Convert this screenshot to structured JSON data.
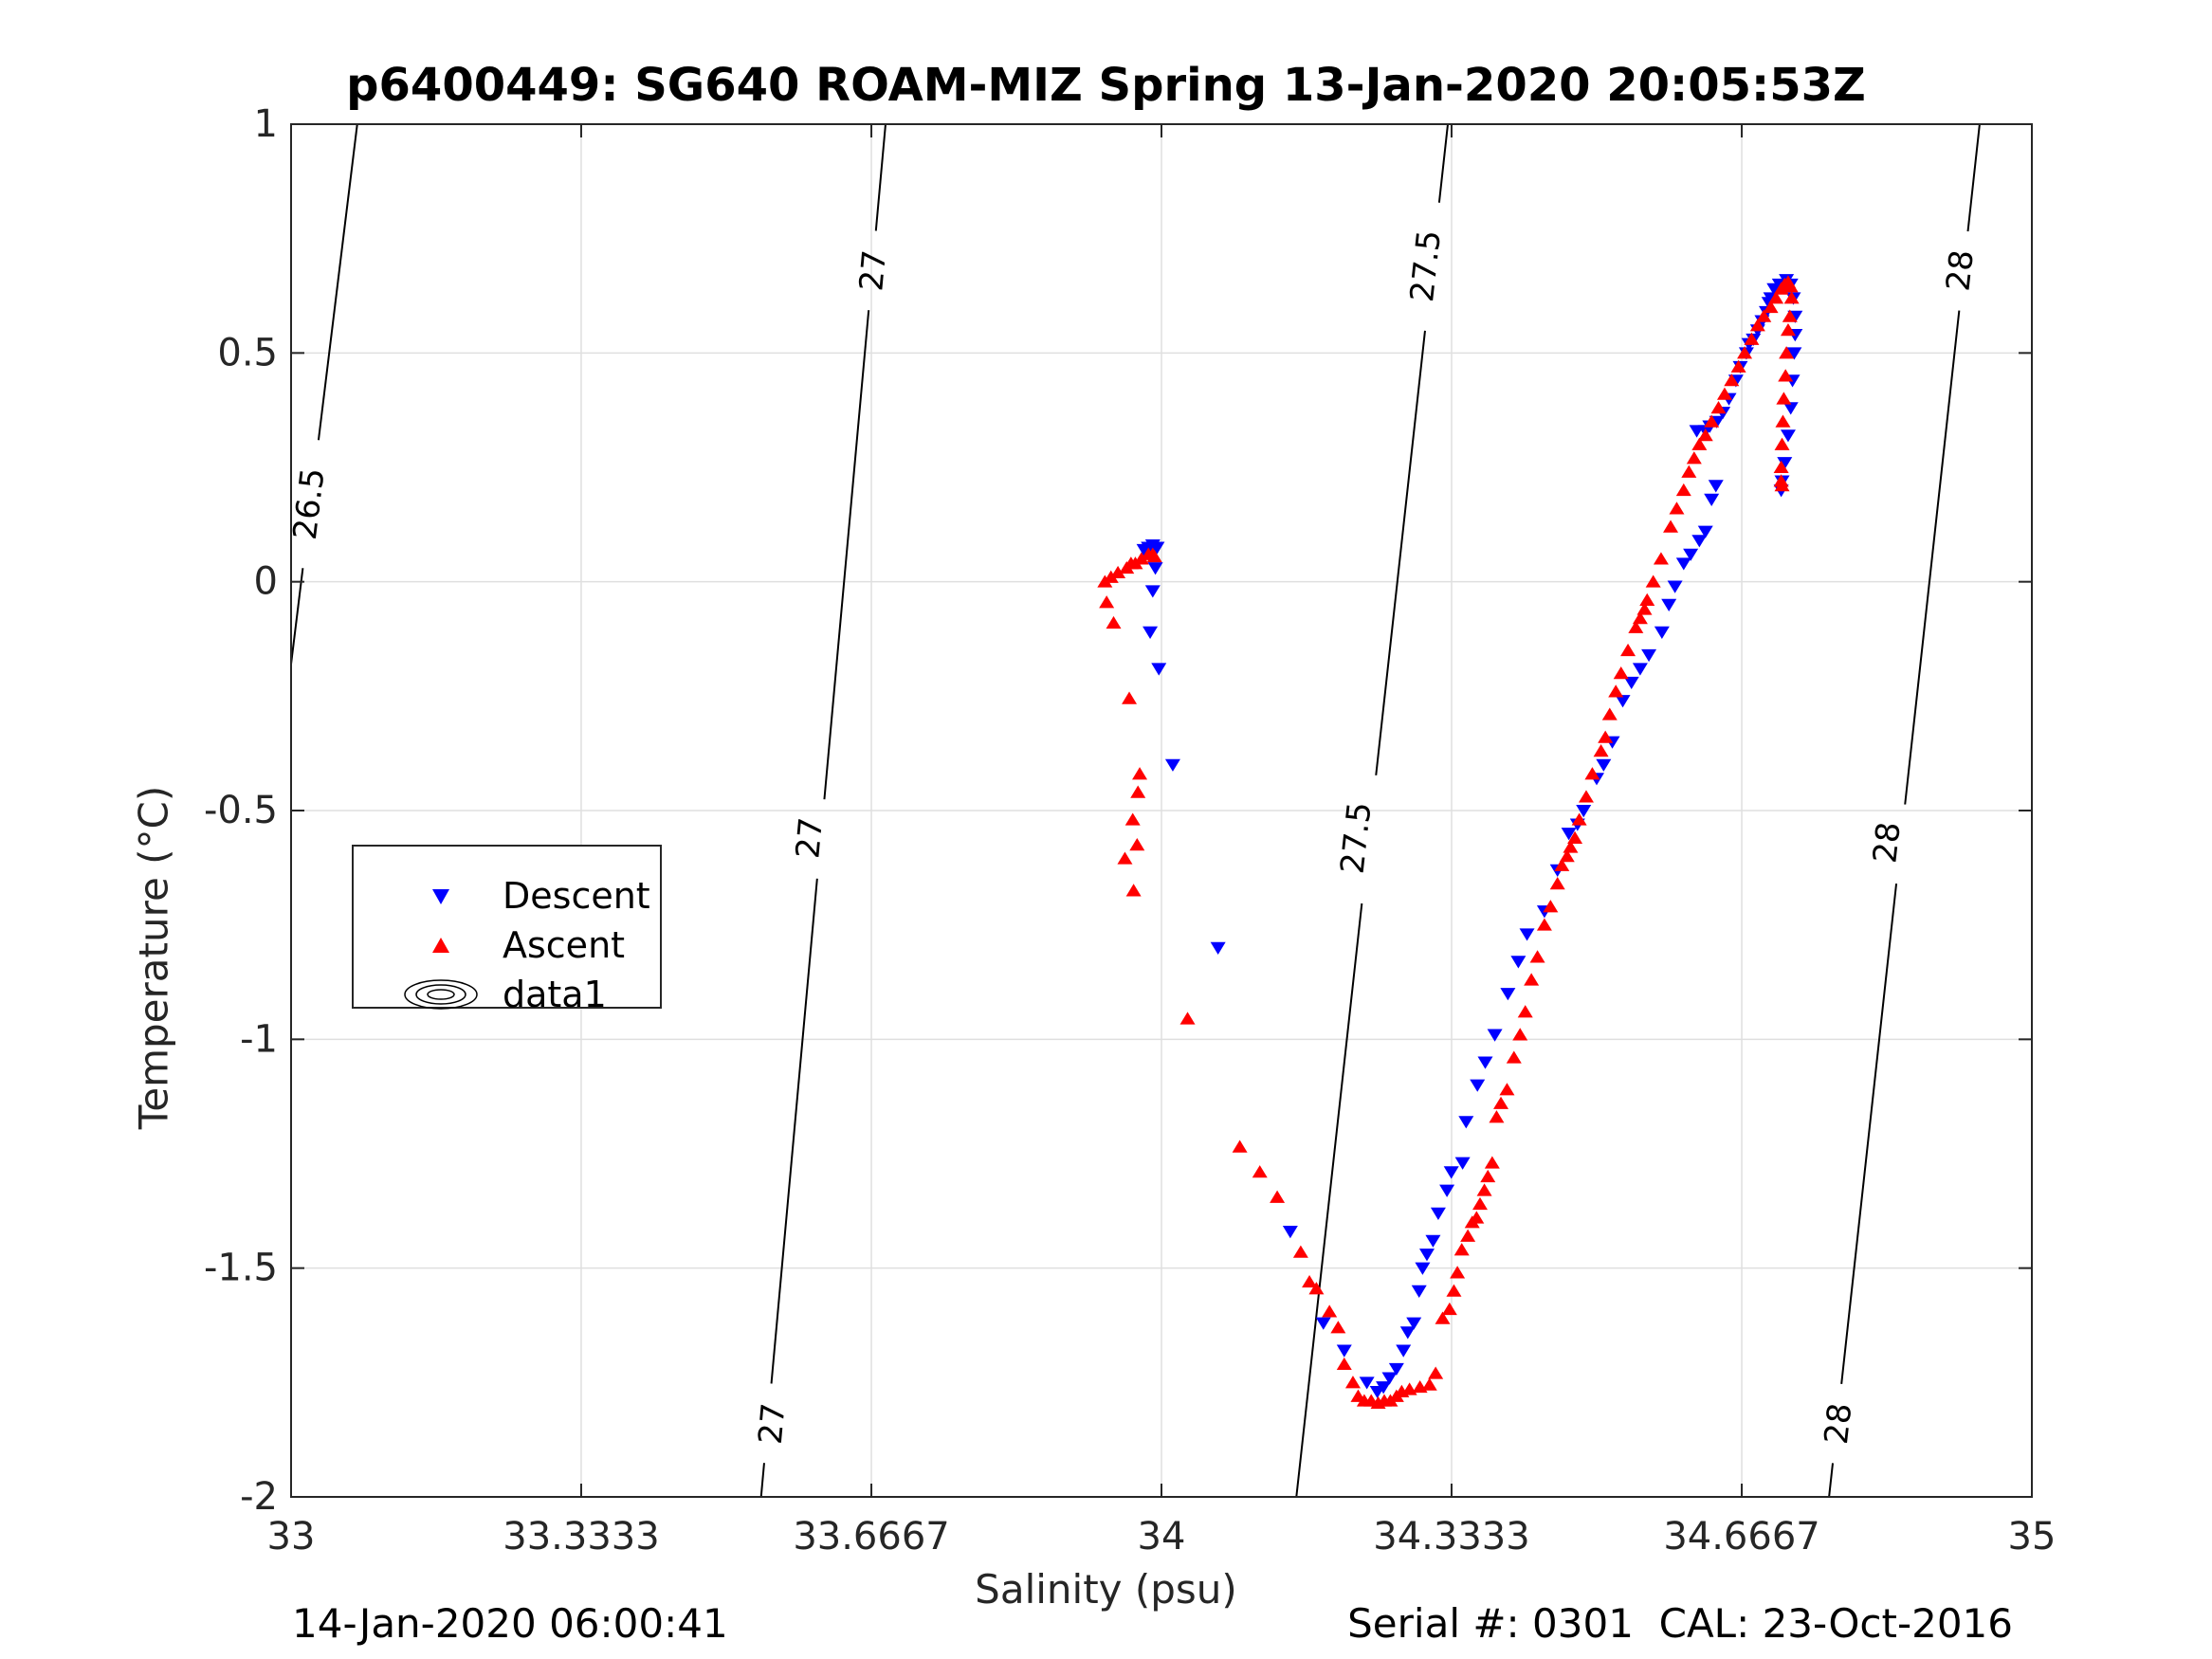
{
  "title": "p6400449: SG640 ROAM-MIZ Spring 13-Jan-2020 20:05:53Z",
  "footer": {
    "left": "14-Jan-2020 06:00:41",
    "right": "Serial #: 0301  CAL: 23-Oct-2016"
  },
  "legend": {
    "items": [
      {
        "label": "Descent",
        "symbol": "triangle-down",
        "color": "#0000ff"
      },
      {
        "label": "Ascent",
        "symbol": "triangle-up",
        "color": "#ff0000"
      },
      {
        "label": "data1",
        "symbol": "contour-ellipses",
        "color": "#000000"
      }
    ]
  },
  "chart_data": {
    "type": "scatter",
    "title": "p6400449: SG640 ROAM-MIZ Spring 13-Jan-2020 20:05:53Z",
    "xlabel": "Salinity (psu)",
    "ylabel": "Temperature (°C)",
    "xlim": [
      33,
      35
    ],
    "ylim": [
      -2,
      1
    ],
    "xticks": [
      "33",
      "33.3333",
      "33.6667",
      "34",
      "34.3333",
      "34.6667",
      "35"
    ],
    "yticks": [
      "-2",
      "-1.5",
      "-1",
      "-0.5",
      "0",
      "0.5",
      "1"
    ],
    "grid": true,
    "legend_position": "middle-left",
    "density_contours": {
      "color": "#000000",
      "lines": [
        {
          "level": "26.5",
          "points": [
            [
              33.0,
              -0.18
            ],
            [
              33.076,
              1.0
            ]
          ],
          "labels": [
            [
              33.021,
              0.17
            ]
          ]
        },
        {
          "level": "27",
          "points": [
            [
              33.54,
              -2.0
            ],
            [
              33.683,
              1.0
            ]
          ],
          "labels": [
            [
              33.553,
              -1.84
            ],
            [
              33.596,
              -0.56
            ],
            [
              33.669,
              0.68
            ]
          ]
        },
        {
          "level": "27.5",
          "points": [
            [
              34.155,
              -2.0
            ],
            [
              34.329,
              1.0
            ]
          ],
          "labels": [
            [
              34.224,
              -0.56
            ],
            [
              34.304,
              0.69
            ]
          ]
        },
        {
          "level": "28",
          "points": [
            [
              34.767,
              -2.0
            ],
            [
              34.94,
              1.0
            ]
          ],
          "labels": [
            [
              34.778,
              -1.84
            ],
            [
              34.834,
              -0.57
            ],
            [
              34.918,
              0.68
            ]
          ]
        }
      ]
    },
    "series": [
      {
        "name": "Descent",
        "marker": "triangle-down",
        "color": "#0000ff",
        "points": [
          [
            33.985,
            0.075
          ],
          [
            33.99,
            0.08
          ],
          [
            33.995,
            0.075
          ],
          [
            33.98,
            0.07
          ],
          [
            33.988,
            0.065
          ],
          [
            33.993,
            0.03
          ],
          [
            33.99,
            -0.02
          ],
          [
            33.987,
            -0.11
          ],
          [
            33.997,
            -0.19
          ],
          [
            34.013,
            -0.4
          ],
          [
            34.065,
            -0.8
          ],
          [
            34.148,
            -1.42
          ],
          [
            34.186,
            -1.62
          ],
          [
            34.21,
            -1.68
          ],
          [
            34.236,
            -1.75
          ],
          [
            34.248,
            -1.77
          ],
          [
            34.255,
            -1.76
          ],
          [
            34.262,
            -1.74
          ],
          [
            34.27,
            -1.72
          ],
          [
            34.278,
            -1.68
          ],
          [
            34.283,
            -1.64
          ],
          [
            34.29,
            -1.62
          ],
          [
            34.296,
            -1.55
          ],
          [
            34.3,
            -1.5
          ],
          [
            34.305,
            -1.47
          ],
          [
            34.312,
            -1.44
          ],
          [
            34.318,
            -1.38
          ],
          [
            34.328,
            -1.33
          ],
          [
            34.333,
            -1.29
          ],
          [
            34.346,
            -1.27
          ],
          [
            34.35,
            -1.18
          ],
          [
            34.363,
            -1.1
          ],
          [
            34.372,
            -1.05
          ],
          [
            34.383,
            -0.99
          ],
          [
            34.398,
            -0.9
          ],
          [
            34.41,
            -0.83
          ],
          [
            34.42,
            -0.77
          ],
          [
            34.44,
            -0.72
          ],
          [
            34.455,
            -0.63
          ],
          [
            34.468,
            -0.55
          ],
          [
            34.478,
            -0.53
          ],
          [
            34.485,
            -0.5
          ],
          [
            34.5,
            -0.43
          ],
          [
            34.508,
            -0.4
          ],
          [
            34.518,
            -0.35
          ],
          [
            34.53,
            -0.26
          ],
          [
            34.54,
            -0.22
          ],
          [
            34.55,
            -0.19
          ],
          [
            34.56,
            -0.16
          ],
          [
            34.575,
            -0.11
          ],
          [
            34.583,
            -0.05
          ],
          [
            34.59,
            -0.01
          ],
          [
            34.6,
            0.04
          ],
          [
            34.608,
            0.06
          ],
          [
            34.618,
            0.09
          ],
          [
            34.625,
            0.11
          ],
          [
            34.632,
            0.18
          ],
          [
            34.637,
            0.21
          ],
          [
            34.615,
            0.33
          ],
          [
            34.625,
            0.33
          ],
          [
            34.63,
            0.34
          ],
          [
            34.638,
            0.35
          ],
          [
            34.645,
            0.37
          ],
          [
            34.652,
            0.4
          ],
          [
            34.66,
            0.44
          ],
          [
            34.665,
            0.47
          ],
          [
            34.672,
            0.5
          ],
          [
            34.675,
            0.52
          ],
          [
            34.68,
            0.53
          ],
          [
            34.685,
            0.55
          ],
          [
            34.69,
            0.57
          ],
          [
            34.695,
            0.59
          ],
          [
            34.698,
            0.61
          ],
          [
            34.7,
            0.62
          ],
          [
            34.704,
            0.64
          ],
          [
            34.71,
            0.65
          ],
          [
            34.718,
            0.66
          ],
          [
            34.723,
            0.65
          ],
          [
            34.726,
            0.62
          ],
          [
            34.728,
            0.58
          ],
          [
            34.728,
            0.54
          ],
          [
            34.727,
            0.5
          ],
          [
            34.725,
            0.44
          ],
          [
            34.723,
            0.38
          ],
          [
            34.72,
            0.32
          ],
          [
            34.716,
            0.26
          ],
          [
            34.713,
            0.22
          ],
          [
            34.712,
            0.2
          ]
        ]
      },
      {
        "name": "Ascent",
        "marker": "triangle-up",
        "color": "#ff0000",
        "points": [
          [
            33.935,
            0.0
          ],
          [
            33.942,
            0.01
          ],
          [
            33.95,
            0.02
          ],
          [
            33.96,
            0.03
          ],
          [
            33.965,
            0.04
          ],
          [
            33.97,
            0.04
          ],
          [
            33.977,
            0.05
          ],
          [
            33.985,
            0.06
          ],
          [
            33.99,
            0.06
          ],
          [
            33.992,
            0.055
          ],
          [
            33.937,
            -0.045
          ],
          [
            33.945,
            -0.09
          ],
          [
            33.963,
            -0.255
          ],
          [
            33.975,
            -0.42
          ],
          [
            33.973,
            -0.46
          ],
          [
            33.967,
            -0.52
          ],
          [
            33.972,
            -0.575
          ],
          [
            33.958,
            -0.605
          ],
          [
            33.968,
            -0.675
          ],
          [
            34.03,
            -0.955
          ],
          [
            34.09,
            -1.235
          ],
          [
            34.113,
            -1.29
          ],
          [
            34.133,
            -1.345
          ],
          [
            34.16,
            -1.465
          ],
          [
            34.17,
            -1.53
          ],
          [
            34.178,
            -1.545
          ],
          [
            34.193,
            -1.595
          ],
          [
            34.203,
            -1.63
          ],
          [
            34.21,
            -1.71
          ],
          [
            34.22,
            -1.75
          ],
          [
            34.226,
            -1.78
          ],
          [
            34.233,
            -1.79
          ],
          [
            34.241,
            -1.79
          ],
          [
            34.249,
            -1.795
          ],
          [
            34.256,
            -1.79
          ],
          [
            34.263,
            -1.79
          ],
          [
            34.27,
            -1.78
          ],
          [
            34.276,
            -1.77
          ],
          [
            34.285,
            -1.765
          ],
          [
            34.297,
            -1.76
          ],
          [
            34.308,
            -1.755
          ],
          [
            34.315,
            -1.73
          ],
          [
            34.323,
            -1.61
          ],
          [
            34.331,
            -1.59
          ],
          [
            34.336,
            -1.55
          ],
          [
            34.34,
            -1.51
          ],
          [
            34.345,
            -1.46
          ],
          [
            34.352,
            -1.43
          ],
          [
            34.357,
            -1.4
          ],
          [
            34.362,
            -1.39
          ],
          [
            34.366,
            -1.36
          ],
          [
            34.371,
            -1.33
          ],
          [
            34.375,
            -1.3
          ],
          [
            34.38,
            -1.27
          ],
          [
            34.385,
            -1.17
          ],
          [
            34.39,
            -1.14
          ],
          [
            34.397,
            -1.11
          ],
          [
            34.405,
            -1.04
          ],
          [
            34.412,
            -0.99
          ],
          [
            34.418,
            -0.94
          ],
          [
            34.425,
            -0.87
          ],
          [
            34.432,
            -0.82
          ],
          [
            34.44,
            -0.75
          ],
          [
            34.447,
            -0.71
          ],
          [
            34.455,
            -0.66
          ],
          [
            34.46,
            -0.62
          ],
          [
            34.466,
            -0.6
          ],
          [
            34.47,
            -0.58
          ],
          [
            34.475,
            -0.56
          ],
          [
            34.48,
            -0.52
          ],
          [
            34.488,
            -0.47
          ],
          [
            34.495,
            -0.42
          ],
          [
            34.505,
            -0.37
          ],
          [
            34.51,
            -0.34
          ],
          [
            34.515,
            -0.29
          ],
          [
            34.522,
            -0.24
          ],
          [
            34.528,
            -0.2
          ],
          [
            34.536,
            -0.15
          ],
          [
            34.545,
            -0.1
          ],
          [
            34.55,
            -0.08
          ],
          [
            34.555,
            -0.06
          ],
          [
            34.558,
            -0.04
          ],
          [
            34.565,
            0.0
          ],
          [
            34.574,
            0.05
          ],
          [
            34.585,
            0.12
          ],
          [
            34.592,
            0.16
          ],
          [
            34.6,
            0.2
          ],
          [
            34.606,
            0.24
          ],
          [
            34.612,
            0.27
          ],
          [
            34.618,
            0.3
          ],
          [
            34.625,
            0.32
          ],
          [
            34.632,
            0.35
          ],
          [
            34.64,
            0.38
          ],
          [
            34.647,
            0.41
          ],
          [
            34.655,
            0.44
          ],
          [
            34.663,
            0.47
          ],
          [
            34.67,
            0.5
          ],
          [
            34.678,
            0.53
          ],
          [
            34.685,
            0.56
          ],
          [
            34.692,
            0.58
          ],
          [
            34.7,
            0.6
          ],
          [
            34.706,
            0.62
          ],
          [
            34.712,
            0.64
          ],
          [
            34.716,
            0.65
          ],
          [
            34.72,
            0.655
          ],
          [
            34.723,
            0.645
          ],
          [
            34.724,
            0.62
          ],
          [
            34.722,
            0.58
          ],
          [
            34.72,
            0.55
          ],
          [
            34.718,
            0.5
          ],
          [
            34.717,
            0.45
          ],
          [
            34.715,
            0.4
          ],
          [
            34.714,
            0.35
          ],
          [
            34.713,
            0.3
          ],
          [
            34.712,
            0.25
          ],
          [
            34.712,
            0.22
          ],
          [
            34.713,
            0.21
          ]
        ]
      }
    ]
  }
}
